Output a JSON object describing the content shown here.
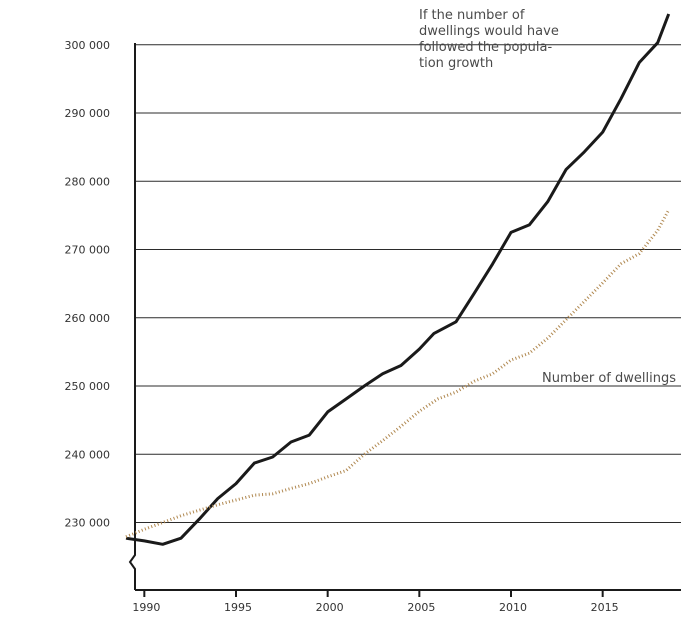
{
  "chart_data": {
    "type": "line",
    "title": "",
    "xlabel": "",
    "ylabel": "",
    "xlim": [
      1989,
      2019
    ],
    "ylim": [
      220000,
      305000
    ],
    "x_ticks": [
      "1990",
      "1995",
      "2000",
      "2005",
      "2010",
      "2015"
    ],
    "y_ticks": [
      "230 000",
      "240 000",
      "250 000",
      "260 000",
      "270 000",
      "280 000",
      "290 000",
      "300 000"
    ],
    "grid": "horizontal",
    "colors": {
      "series_a": "#1a1a1a",
      "series_b": "#b08850"
    },
    "series": [
      {
        "x": [
          1989,
          1990,
          1991,
          1992,
          1993,
          1994,
          1995,
          1996,
          1997,
          1998,
          1999,
          2000,
          2001,
          2002,
          2003,
          2004,
          2005,
          2005.8,
          2007,
          2008,
          2009,
          2010,
          2011,
          2012,
          2013,
          2014,
          2015,
          2016,
          2017,
          2018,
          2018.6
        ],
        "values": [
          227700,
          227300,
          226800,
          227700,
          230500,
          233500,
          235700,
          238700,
          239600,
          241800,
          242800,
          246200,
          248100,
          250000,
          251800,
          253000,
          255400,
          257700,
          259400,
          263600,
          267900,
          272500,
          273600,
          277000,
          281700,
          284300,
          287200,
          292100,
          297400,
          300300,
          304500
        ]
      },
      {
        "x": [
          1989,
          1990,
          1991,
          1992,
          1993,
          1994,
          1995,
          1996,
          1997,
          1998,
          1999,
          2000,
          2001,
          2002,
          2003,
          2004,
          2005,
          2006,
          2007,
          2008,
          2009,
          2010,
          2011,
          2012,
          2013,
          2014,
          2015,
          2016,
          2017,
          2018,
          2018.6
        ],
        "values": [
          227900,
          229000,
          230000,
          231000,
          231800,
          232600,
          233300,
          234000,
          234200,
          235000,
          235700,
          236700,
          237600,
          240000,
          242000,
          244100,
          246300,
          248100,
          249100,
          250700,
          251800,
          253800,
          254800,
          257000,
          259700,
          262400,
          265100,
          267900,
          269400,
          272800,
          275800
        ]
      }
    ],
    "annotations": [
      {
        "lines": [
          "If the number of",
          "dwellings would have",
          "followed the popula-",
          "tion growth"
        ],
        "series": 0
      },
      {
        "lines": [
          "Number of dwellings"
        ],
        "series": 1
      }
    ]
  }
}
